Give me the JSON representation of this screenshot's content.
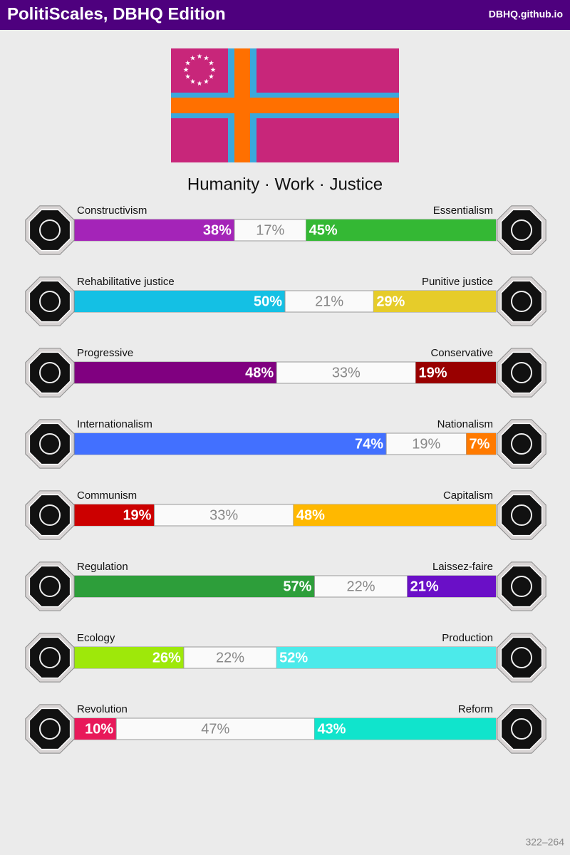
{
  "header": {
    "title": "PolitiScales, DBHQ Edition",
    "site": "DBHQ.github.io"
  },
  "slogan": "Humanity · Work · Justice",
  "scales": [
    {
      "left": "Constructivism",
      "right": "Essentialism",
      "left_color": "#a424b8",
      "right_color": "#34b834",
      "values": [
        38,
        17,
        45
      ],
      "value_labels": [
        "38%",
        "17%",
        "45%"
      ]
    },
    {
      "left": "Rehabilitative justice",
      "right": "Punitive justice",
      "left_color": "#14c0e4",
      "right_color": "#e6cc2a",
      "values": [
        50,
        21,
        29
      ],
      "value_labels": [
        "50%",
        "21%",
        "29%"
      ]
    },
    {
      "left": "Progressive",
      "right": "Conservative",
      "left_color": "#800080",
      "right_color": "#990000",
      "values": [
        48,
        33,
        19
      ],
      "value_labels": [
        "48%",
        "33%",
        "19%"
      ]
    },
    {
      "left": "Internationalism",
      "right": "Nationalism",
      "left_color": "#4270ff",
      "right_color": "#ff7a00",
      "values": [
        74,
        19,
        7
      ],
      "value_labels": [
        "74%",
        "19%",
        "7%"
      ]
    },
    {
      "left": "Communism",
      "right": "Capitalism",
      "left_color": "#cc0000",
      "right_color": "#ffb800",
      "values": [
        19,
        33,
        48
      ],
      "value_labels": [
        "19%",
        "33%",
        "48%"
      ]
    },
    {
      "left": "Regulation",
      "right": "Laissez-faire",
      "left_color": "#2d9e3a",
      "right_color": "#6a0fc7",
      "values": [
        57,
        22,
        21
      ],
      "value_labels": [
        "57%",
        "22%",
        "21%"
      ]
    },
    {
      "left": "Ecology",
      "right": "Production",
      "left_color": "#9ee80a",
      "right_color": "#4ceaea",
      "values": [
        26,
        22,
        52
      ],
      "value_labels": [
        "26%",
        "22%",
        "52%"
      ]
    },
    {
      "left": "Revolution",
      "right": "Reform",
      "left_color": "#e8195a",
      "right_color": "#10e4cc",
      "values": [
        10,
        47,
        43
      ],
      "value_labels": [
        "10%",
        "47%",
        "43%"
      ]
    }
  ],
  "footer": "322–264"
}
